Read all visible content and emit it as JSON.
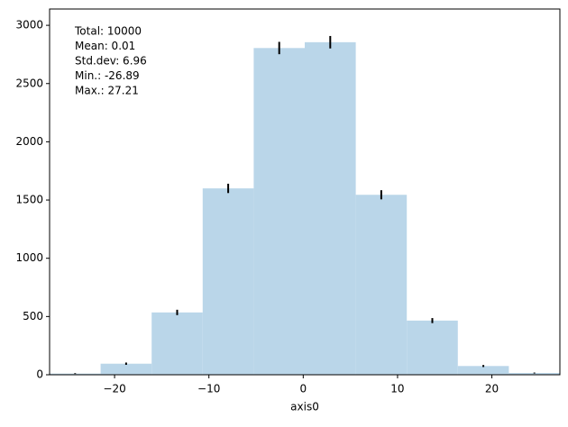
{
  "chart_data": {
    "type": "histogram",
    "bins": [
      -26.89,
      -21.48,
      -16.07,
      -10.66,
      -5.25,
      0.16,
      5.57,
      10.98,
      16.39,
      21.8,
      27.21
    ],
    "values": [
      10,
      95,
      535,
      1600,
      2805,
      2855,
      1545,
      465,
      75,
      15
    ],
    "errors": [
      3.2,
      9.7,
      23.1,
      40,
      53,
      53.4,
      39.3,
      21.6,
      8.7,
      3.9
    ],
    "color": "#bad6e9",
    "error_color": "#000000",
    "xlabel": "axis0",
    "xlim": [
      -26.89,
      27.21
    ],
    "xticks": [
      {
        "value": -20,
        "label": "−20"
      },
      {
        "value": -10,
        "label": "−10"
      },
      0,
      10,
      20
    ],
    "ylim": [
      0,
      3140
    ],
    "yticks": [
      0,
      500,
      1000,
      1500,
      2000,
      2500,
      3000
    ],
    "annotations": [
      "Total: 10000",
      "Mean: 0.01",
      "Std.dev: 6.96",
      "Min.: -26.89",
      "Max.: 27.21"
    ]
  }
}
